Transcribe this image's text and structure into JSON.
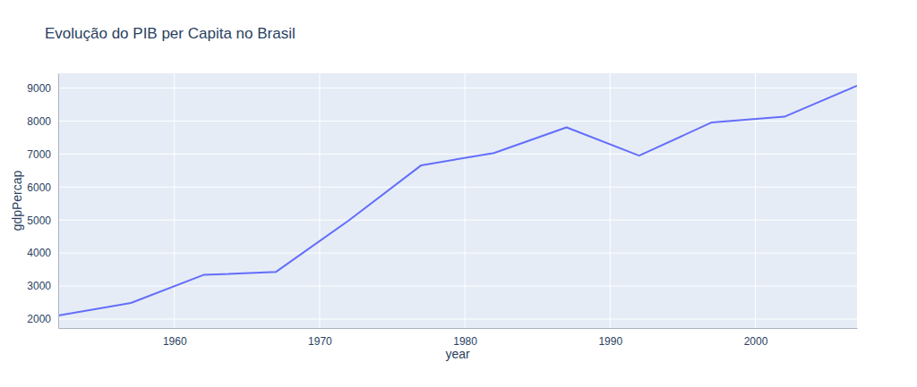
{
  "chart_data": {
    "type": "line",
    "title": "Evolução do PIB per Capita no Brasil",
    "x_label": "year",
    "y_label": "gdpPercap",
    "x": [
      1952,
      1957,
      1962,
      1967,
      1972,
      1977,
      1982,
      1987,
      1992,
      1997,
      2002,
      2007
    ],
    "values": [
      2109,
      2487,
      3337,
      3430,
      4986,
      6660,
      7031,
      7807,
      6950,
      7958,
      8131,
      9066
    ],
    "color": "#636efa",
    "xlim": [
      1952,
      2007
    ],
    "xticks": [
      1960,
      1970,
      1980,
      1990,
      2000
    ],
    "ylim": [
      1729,
      9446
    ],
    "yticks": [
      2000,
      3000,
      4000,
      5000,
      6000,
      7000,
      8000,
      9000
    ],
    "grid": true
  }
}
